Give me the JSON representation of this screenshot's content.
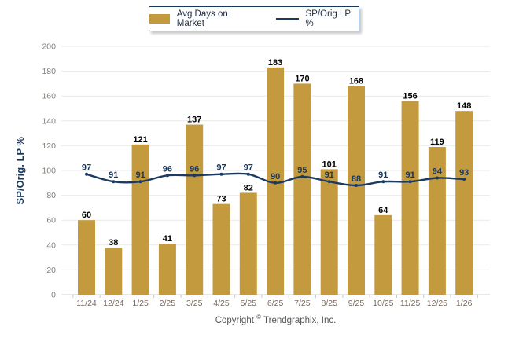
{
  "legend": {
    "items": [
      {
        "label": "Avg Days on Market",
        "type": "bar"
      },
      {
        "label": "SP/Orig LP %",
        "type": "line"
      }
    ]
  },
  "copyright": {
    "prefix": "Copyright",
    "symbol": "©",
    "company": "Trendgraphix, Inc."
  },
  "colors": {
    "bar": "#C49A3E",
    "line": "#1C3A5F",
    "bar_label": "#000000",
    "line_label": "#17375D",
    "grid": "#E9E9E9",
    "axis_line": "#CFCFCF",
    "tick": "#C8C8C8"
  },
  "chart_data": {
    "type": "bar+line",
    "categories": [
      "11/24",
      "12/24",
      "1/25",
      "2/25",
      "3/25",
      "4/25",
      "5/25",
      "6/25",
      "7/25",
      "8/25",
      "9/25",
      "10/25",
      "11/25",
      "12/25",
      "1/26"
    ],
    "series": [
      {
        "name": "Avg Days on Market",
        "type": "bar",
        "values": [
          60,
          38,
          121,
          41,
          137,
          73,
          82,
          183,
          170,
          101,
          168,
          64,
          156,
          119,
          148
        ]
      },
      {
        "name": "SP/Orig LP %",
        "type": "line",
        "values": [
          97,
          91,
          91,
          96,
          96,
          97,
          97,
          90,
          95,
          91,
          88,
          91,
          91,
          94,
          93
        ]
      }
    ],
    "ylabel": "SP/Orig. LP %",
    "ylim": [
      0,
      200
    ],
    "ytick_step": 20,
    "grid": true,
    "legend_position": "top"
  }
}
